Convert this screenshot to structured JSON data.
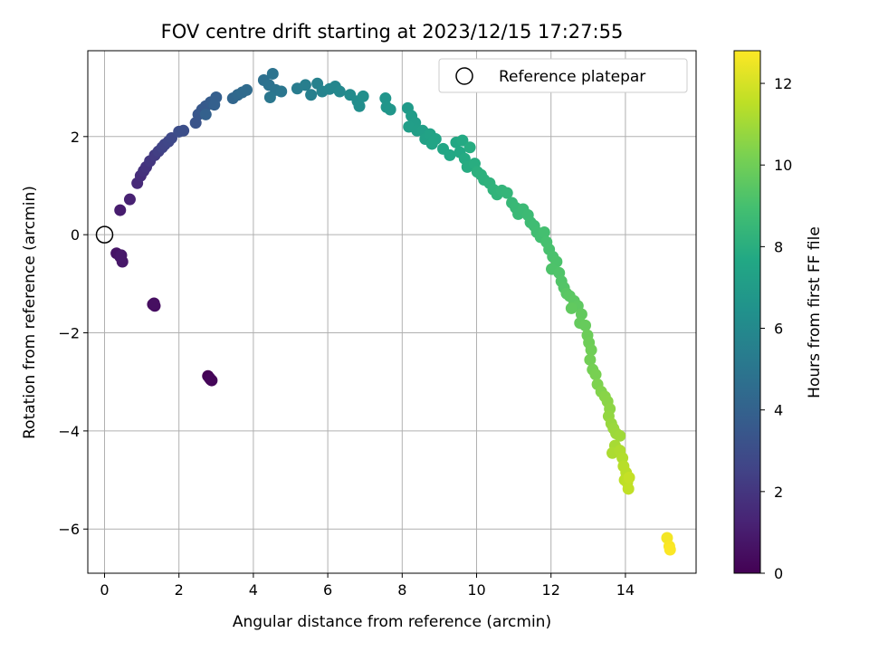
{
  "chart_data": {
    "type": "scatter",
    "title": "FOV centre drift starting at 2023/12/15 17:27:55",
    "xlabel": "Angular distance from reference (arcmin)",
    "ylabel": "Rotation from reference (arcmin)",
    "xlim": [
      -0.45,
      15.9
    ],
    "ylim": [
      -6.9,
      3.75
    ],
    "xticks": [
      0,
      2,
      4,
      6,
      8,
      10,
      12,
      14
    ],
    "yticks": [
      -6,
      -4,
      -2,
      0,
      2
    ],
    "grid": true,
    "legend": {
      "placement": "top-right",
      "entries": [
        "Reference platepar"
      ]
    },
    "reference_point": {
      "x": 0,
      "y": 0,
      "label": "Reference platepar"
    },
    "colorbar": {
      "label": "Hours from first FF file",
      "range": [
        0,
        12.8
      ],
      "ticks": [
        0,
        2,
        4,
        6,
        8,
        10,
        12
      ],
      "colormap": "viridis"
    },
    "points": [
      [
        2.78,
        -2.88,
        0.0
      ],
      [
        2.82,
        -2.92,
        0.1
      ],
      [
        2.88,
        -2.97,
        0.15
      ],
      [
        2.85,
        -2.95,
        0.2
      ],
      [
        1.3,
        -1.42,
        0.4
      ],
      [
        1.35,
        -1.45,
        0.45
      ],
      [
        1.33,
        -1.4,
        0.5
      ],
      [
        0.32,
        -0.38,
        0.7
      ],
      [
        0.42,
        -0.45,
        0.75
      ],
      [
        0.48,
        -0.55,
        0.8
      ],
      [
        0.45,
        -0.42,
        0.85
      ],
      [
        0.42,
        0.5,
        1.0
      ],
      [
        0.68,
        0.72,
        1.2
      ],
      [
        0.88,
        1.05,
        1.5
      ],
      [
        0.97,
        1.2,
        1.65
      ],
      [
        1.05,
        1.3,
        1.8
      ],
      [
        1.12,
        1.38,
        1.9
      ],
      [
        1.22,
        1.5,
        2.05
      ],
      [
        1.35,
        1.62,
        2.2
      ],
      [
        1.45,
        1.7,
        2.35
      ],
      [
        1.55,
        1.78,
        2.5
      ],
      [
        1.62,
        1.84,
        2.6
      ],
      [
        1.72,
        1.9,
        2.7
      ],
      [
        1.8,
        1.97,
        2.8
      ],
      [
        2.0,
        2.1,
        3.0
      ],
      [
        2.12,
        2.12,
        3.05
      ],
      [
        2.45,
        2.28,
        3.3
      ],
      [
        2.52,
        2.45,
        3.4
      ],
      [
        2.62,
        2.55,
        3.5
      ],
      [
        2.72,
        2.62,
        3.6
      ],
      [
        2.85,
        2.7,
        3.7
      ],
      [
        3.0,
        2.8,
        3.85
      ],
      [
        2.95,
        2.65,
        3.9
      ],
      [
        2.72,
        2.45,
        3.95
      ],
      [
        3.45,
        2.78,
        4.2
      ],
      [
        3.58,
        2.85,
        4.3
      ],
      [
        3.7,
        2.9,
        4.4
      ],
      [
        3.82,
        2.95,
        4.45
      ],
      [
        4.28,
        3.15,
        4.7
      ],
      [
        4.42,
        3.05,
        4.8
      ],
      [
        4.52,
        3.28,
        4.85
      ],
      [
        4.6,
        2.95,
        4.9
      ],
      [
        4.75,
        2.92,
        5.0
      ],
      [
        4.45,
        2.8,
        5.05
      ],
      [
        5.18,
        2.98,
        5.3
      ],
      [
        5.4,
        3.05,
        5.45
      ],
      [
        5.55,
        2.85,
        5.5
      ],
      [
        5.72,
        3.08,
        5.6
      ],
      [
        5.85,
        2.92,
        5.7
      ],
      [
        6.05,
        2.97,
        5.8
      ],
      [
        6.2,
        3.02,
        5.85
      ],
      [
        6.32,
        2.92,
        5.95
      ],
      [
        6.6,
        2.85,
        6.1
      ],
      [
        6.8,
        2.72,
        6.2
      ],
      [
        6.85,
        2.62,
        6.25
      ],
      [
        6.95,
        2.82,
        6.3
      ],
      [
        7.55,
        2.78,
        6.6
      ],
      [
        7.58,
        2.6,
        6.65
      ],
      [
        7.68,
        2.55,
        6.7
      ],
      [
        8.15,
        2.58,
        6.9
      ],
      [
        8.25,
        2.42,
        7.0
      ],
      [
        8.35,
        2.28,
        7.05
      ],
      [
        8.18,
        2.2,
        7.1
      ],
      [
        8.4,
        2.12,
        7.15
      ],
      [
        8.55,
        2.12,
        7.2
      ],
      [
        8.62,
        1.95,
        7.3
      ],
      [
        8.75,
        2.05,
        7.35
      ],
      [
        8.9,
        1.95,
        7.4
      ],
      [
        8.8,
        1.85,
        7.45
      ],
      [
        9.1,
        1.75,
        7.55
      ],
      [
        9.28,
        1.62,
        7.6
      ],
      [
        9.45,
        1.88,
        7.65
      ],
      [
        9.55,
        1.68,
        7.7
      ],
      [
        9.62,
        1.92,
        7.75
      ],
      [
        9.68,
        1.55,
        7.8
      ],
      [
        9.75,
        1.38,
        7.85
      ],
      [
        9.82,
        1.78,
        7.9
      ],
      [
        9.95,
        1.45,
        7.95
      ],
      [
        10.02,
        1.28,
        8.05
      ],
      [
        10.12,
        1.22,
        8.1
      ],
      [
        10.2,
        1.12,
        8.15
      ],
      [
        10.35,
        1.05,
        8.2
      ],
      [
        10.45,
        0.92,
        8.25
      ],
      [
        10.55,
        0.82,
        8.3
      ],
      [
        10.68,
        0.9,
        8.35
      ],
      [
        10.82,
        0.85,
        8.4
      ],
      [
        10.95,
        0.65,
        8.5
      ],
      [
        11.05,
        0.55,
        8.55
      ],
      [
        11.12,
        0.42,
        8.6
      ],
      [
        11.25,
        0.52,
        8.65
      ],
      [
        11.38,
        0.4,
        8.7
      ],
      [
        11.45,
        0.25,
        8.75
      ],
      [
        11.55,
        0.18,
        8.8
      ],
      [
        11.62,
        0.05,
        8.85
      ],
      [
        11.72,
        -0.05,
        8.9
      ],
      [
        11.82,
        0.05,
        8.95
      ],
      [
        11.88,
        -0.15,
        9.0
      ],
      [
        11.95,
        -0.3,
        9.05
      ],
      [
        12.05,
        -0.45,
        9.1
      ],
      [
        12.15,
        -0.55,
        9.15
      ],
      [
        12.02,
        -0.7,
        9.2
      ],
      [
        12.22,
        -0.78,
        9.25
      ],
      [
        12.28,
        -0.95,
        9.3
      ],
      [
        12.35,
        -1.08,
        9.35
      ],
      [
        12.42,
        -1.2,
        9.45
      ],
      [
        12.5,
        -1.25,
        9.5
      ],
      [
        12.62,
        -1.35,
        9.55
      ],
      [
        12.72,
        -1.45,
        9.6
      ],
      [
        12.55,
        -1.5,
        9.65
      ],
      [
        12.82,
        -1.62,
        9.7
      ],
      [
        12.78,
        -1.8,
        9.75
      ],
      [
        12.92,
        -1.85,
        9.8
      ],
      [
        12.98,
        -2.05,
        9.9
      ],
      [
        13.02,
        -2.2,
        9.95
      ],
      [
        13.08,
        -2.35,
        10.0
      ],
      [
        13.05,
        -2.55,
        10.05
      ],
      [
        13.12,
        -2.75,
        10.1
      ],
      [
        13.2,
        -2.85,
        10.2
      ],
      [
        13.25,
        -3.05,
        10.3
      ],
      [
        13.35,
        -3.2,
        10.4
      ],
      [
        13.45,
        -3.3,
        10.5
      ],
      [
        13.52,
        -3.4,
        10.55
      ],
      [
        13.58,
        -3.55,
        10.6
      ],
      [
        13.55,
        -3.7,
        10.7
      ],
      [
        13.62,
        -3.85,
        10.8
      ],
      [
        13.68,
        -3.95,
        10.85
      ],
      [
        13.75,
        -4.05,
        10.9
      ],
      [
        13.85,
        -4.1,
        10.95
      ],
      [
        13.72,
        -4.3,
        11.1
      ],
      [
        13.65,
        -4.45,
        11.2
      ],
      [
        13.85,
        -4.4,
        11.25
      ],
      [
        13.92,
        -4.55,
        11.3
      ],
      [
        13.95,
        -4.72,
        11.4
      ],
      [
        14.02,
        -4.85,
        11.45
      ],
      [
        13.98,
        -5.0,
        11.5
      ],
      [
        14.05,
        -5.05,
        11.55
      ],
      [
        14.08,
        -5.18,
        11.6
      ],
      [
        14.1,
        -4.95,
        11.65
      ],
      [
        15.12,
        -6.18,
        12.6
      ],
      [
        15.18,
        -6.35,
        12.7
      ],
      [
        15.2,
        -6.42,
        12.75
      ]
    ]
  }
}
